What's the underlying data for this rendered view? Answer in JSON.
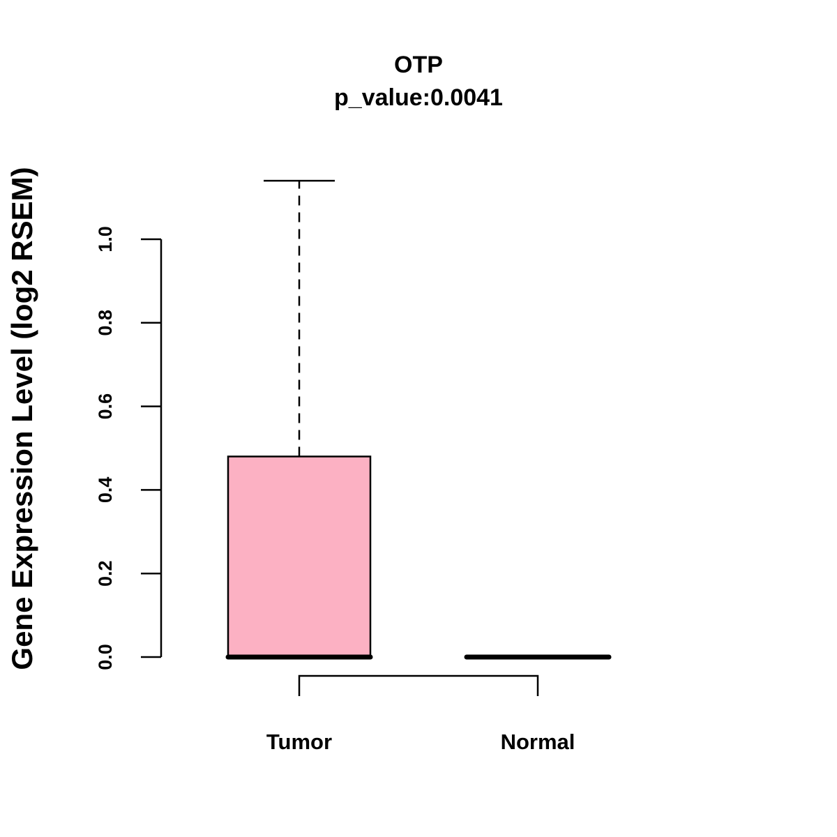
{
  "chart_data": {
    "type": "box",
    "title": "OTP",
    "subtitle": "p_value:0.0041",
    "xlabel": "",
    "ylabel": "Gene Expression Level (log2 RSEM)",
    "ylim": [
      0,
      1.15
    ],
    "yticks": [
      0.0,
      0.2,
      0.4,
      0.6,
      0.8,
      1.0
    ],
    "ytick_labels": [
      "0.0",
      "0.2",
      "0.4",
      "0.6",
      "0.8",
      "1.0"
    ],
    "categories": [
      "Tumor",
      "Normal"
    ],
    "boxes": [
      {
        "name": "Tumor",
        "min": 0,
        "q1": 0,
        "median": 0,
        "q3": 0.48,
        "max": 1.14,
        "color": "#FCB1C3"
      },
      {
        "name": "Normal",
        "min": 0,
        "q1": 0,
        "median": 0,
        "q3": 0,
        "max": 0,
        "color": "#FCB1C3"
      }
    ],
    "comparison_bracket": [
      "Tumor",
      "Normal"
    ],
    "grid": false
  }
}
